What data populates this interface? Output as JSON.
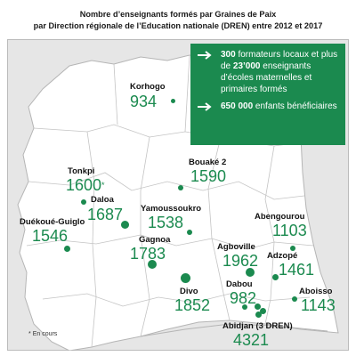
{
  "title": {
    "line1": "Nombre d’enseignants formés par Graines de Paix",
    "line2": "par Direction régionale de l’Education nationale (DREN) entre 2012 et 2017"
  },
  "info_box": {
    "item1_bold1": "300",
    "item1_text1": " formateurs locaux et plus de ",
    "item1_bold2": "23’000",
    "item1_text2": " enseignants d’écoles maternelles et primaires formés",
    "item2_bold": "650 000",
    "item2_text": " enfants bénéficiaires",
    "arrow_icon": "right-arrow-icon"
  },
  "regions": [
    {
      "name": "Korhogo",
      "value": "934"
    },
    {
      "name": "Tonkpi",
      "value": "1600",
      "marker": "*"
    },
    {
      "name": "Bouaké 2",
      "value": "1590"
    },
    {
      "name": "Daloa",
      "value": "1687"
    },
    {
      "name": "Yamoussoukro",
      "value": "1538"
    },
    {
      "name": "Abengourou",
      "value": "1103"
    },
    {
      "name": "Duékoué-Guiglo",
      "value": "1546"
    },
    {
      "name": "Gagnoa",
      "value": "1783"
    },
    {
      "name": "Agboville",
      "value": "1962"
    },
    {
      "name": "Adzopé",
      "value": "1461"
    },
    {
      "name": "Divo",
      "value": "1852"
    },
    {
      "name": "Dabou",
      "value": "982"
    },
    {
      "name": "Aboisso",
      "value": "1143"
    },
    {
      "name": "Abidjan (3 DREN)",
      "value": "4321"
    }
  ],
  "legend": {
    "marker": "*",
    "text": "En cours"
  },
  "colors": {
    "accent": "#1b8a4f",
    "land": "#ffffff",
    "background": "#e6e6e6"
  }
}
